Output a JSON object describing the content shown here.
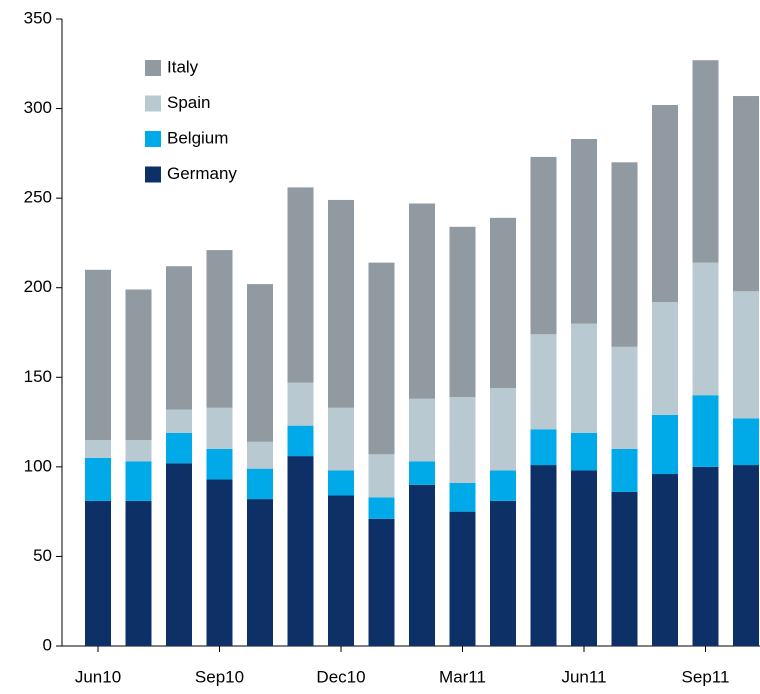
{
  "chart_data": {
    "type": "stacked_bar",
    "categories": [
      "Jun10",
      null,
      null,
      "Sep10",
      null,
      null,
      "Dec10",
      null,
      null,
      "Mar11",
      null,
      null,
      "Jun11",
      null,
      null,
      "Sep11",
      null
    ],
    "series": [
      {
        "name": "Germany",
        "color": "#0d3066",
        "values": [
          81,
          81,
          102,
          93,
          82,
          106,
          84,
          71,
          90,
          75,
          81,
          101,
          98,
          86,
          96,
          100,
          101
        ]
      },
      {
        "name": "Belgium",
        "color": "#00a9e8",
        "values": [
          24,
          22,
          17,
          17,
          17,
          17,
          14,
          12,
          13,
          16,
          17,
          20,
          21,
          24,
          33,
          40,
          26
        ]
      },
      {
        "name": "Spain",
        "color": "#b9c9d2",
        "values": [
          10,
          12,
          13,
          23,
          15,
          24,
          35,
          24,
          35,
          48,
          46,
          53,
          61,
          57,
          63,
          74,
          71
        ]
      },
      {
        "name": "Italy",
        "color": "#9199a1",
        "values": [
          95,
          84,
          80,
          88,
          88,
          109,
          116,
          107,
          109,
          95,
          95,
          99,
          103,
          103,
          110,
          113,
          109
        ]
      }
    ],
    "ylim": [
      0,
      350
    ],
    "yticks": [
      0,
      50,
      100,
      150,
      200,
      250,
      300,
      350
    ],
    "legend": "upper left"
  }
}
